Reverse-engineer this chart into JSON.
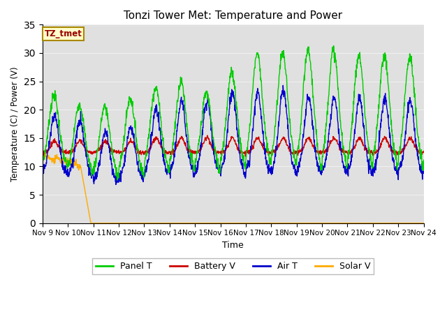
{
  "title": "Tonzi Tower Met: Temperature and Power",
  "ylabel": "Temperature (C) / Power (V)",
  "xlabel": "Time",
  "tag_label": "TZ_tmet",
  "ylim": [
    0,
    35
  ],
  "yticks": [
    0,
    5,
    10,
    15,
    20,
    25,
    30,
    35
  ],
  "x_tick_labels": [
    "Nov 9",
    "Nov 10",
    "Nov 11",
    "Nov 12",
    "Nov 13",
    "Nov 14",
    "Nov 15",
    "Nov 16",
    "Nov 17",
    "Nov 18",
    "Nov 19",
    "Nov 20",
    "Nov 21",
    "Nov 22",
    "Nov 23",
    "Nov 24"
  ],
  "axes_bg_color": "#e0e0e0",
  "panel_t_color": "#00cc00",
  "battery_v_color": "#cc0000",
  "air_t_color": "#0000cc",
  "solar_v_color": "#ffaa00",
  "line_width": 1.0,
  "grid_color": "#f0f0f0"
}
